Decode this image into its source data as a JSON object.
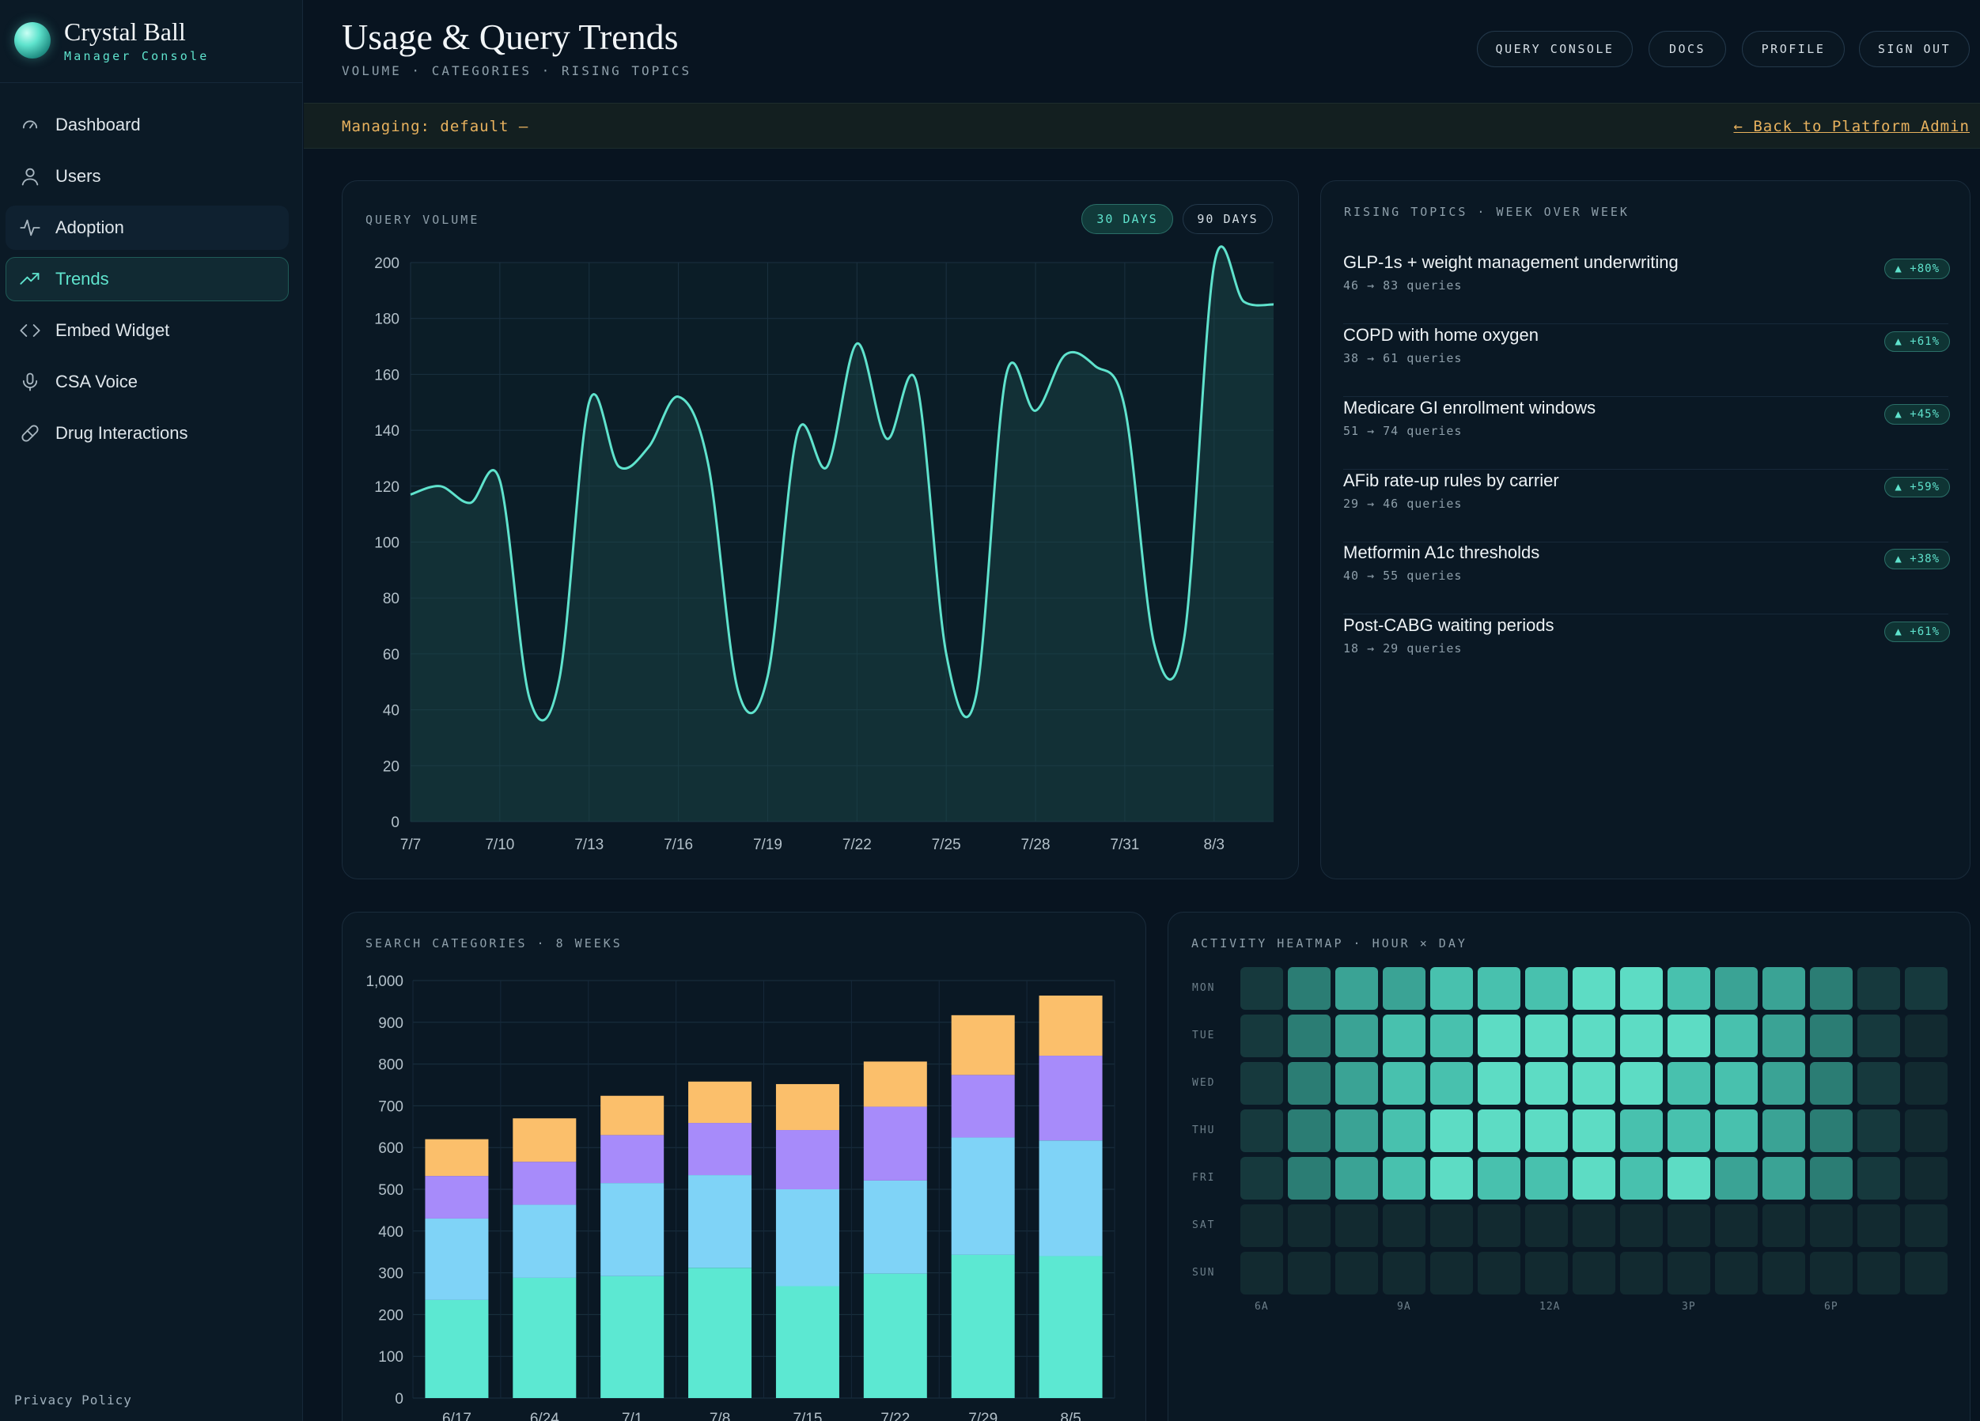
{
  "brand": {
    "title": "Crystal Ball",
    "subtitle": "Manager Console"
  },
  "nav": [
    {
      "label": "Dashboard",
      "icon": "gauge-icon"
    },
    {
      "label": "Users",
      "icon": "user-icon"
    },
    {
      "label": "Adoption",
      "icon": "activity-icon"
    },
    {
      "label": "Trends",
      "icon": "trending-up-icon",
      "active": true
    },
    {
      "label": "Embed Widget",
      "icon": "code-icon"
    },
    {
      "label": "CSA Voice",
      "icon": "microphone-icon"
    },
    {
      "label": "Drug Interactions",
      "icon": "pill-icon"
    }
  ],
  "footer": {
    "privacy": "Privacy Policy"
  },
  "header": {
    "title": "Usage & Query Trends",
    "subtitle": "VOLUME · CATEGORIES · RISING TOPICS",
    "buttons": [
      "QUERY CONSOLE",
      "DOCS",
      "PROFILE",
      "SIGN OUT"
    ]
  },
  "managing": {
    "text": "Managing: default —",
    "back": "← Back to Platform Admin"
  },
  "query_volume": {
    "label": "QUERY VOLUME",
    "toggles": [
      "30 DAYS",
      "90 DAYS"
    ],
    "active_toggle": "30 DAYS"
  },
  "rising_topics": {
    "label": "RISING TOPICS · WEEK OVER WEEK",
    "items": [
      {
        "title": "GLP-1s + weight management underwriting",
        "sub": "46 → 83 queries",
        "badge": "▲ +80%"
      },
      {
        "title": "COPD with home oxygen",
        "sub": "38 → 61 queries",
        "badge": "▲ +61%"
      },
      {
        "title": "Medicare GI enrollment windows",
        "sub": "51 → 74 queries",
        "badge": "▲ +45%"
      },
      {
        "title": "AFib rate-up rules by carrier",
        "sub": "29 → 46 queries",
        "badge": "▲ +59%"
      },
      {
        "title": "Metformin A1c thresholds",
        "sub": "40 → 55 queries",
        "badge": "▲ +38%"
      },
      {
        "title": "Post-CABG waiting periods",
        "sub": "18 → 29 queries",
        "badge": "▲ +61%"
      }
    ]
  },
  "search_categories": {
    "label": "SEARCH CATEGORIES · 8 WEEKS"
  },
  "heatmap": {
    "label": "ACTIVITY HEATMAP · HOUR × DAY",
    "days": [
      "MON",
      "TUE",
      "WED",
      "THU",
      "FRI",
      "SAT",
      "SUN"
    ],
    "hour_labels": [
      "6A",
      "9A",
      "12A",
      "3P",
      "6P"
    ],
    "levels": [
      [
        1,
        2,
        3,
        3,
        4,
        4,
        4,
        5,
        5,
        4,
        3,
        3,
        2,
        1,
        1
      ],
      [
        1,
        2,
        3,
        4,
        4,
        5,
        5,
        5,
        5,
        5,
        4,
        3,
        2,
        1,
        0
      ],
      [
        1,
        2,
        3,
        4,
        4,
        5,
        5,
        5,
        5,
        4,
        4,
        3,
        2,
        1,
        0
      ],
      [
        1,
        2,
        3,
        4,
        5,
        5,
        5,
        5,
        4,
        4,
        4,
        3,
        2,
        1,
        0
      ],
      [
        1,
        2,
        3,
        4,
        5,
        4,
        4,
        5,
        4,
        5,
        3,
        3,
        2,
        1,
        0
      ],
      [
        0,
        0,
        0,
        0,
        0,
        0,
        0,
        0,
        0,
        0,
        0,
        0,
        0,
        0,
        0
      ],
      [
        0,
        0,
        0,
        0,
        0,
        0,
        0,
        0,
        0,
        0,
        0,
        0,
        0,
        0,
        0
      ]
    ],
    "colors": [
      "#122a30",
      "#16393d",
      "#2b7d74",
      "#3aa395",
      "#48c1ae",
      "#5ddcc4"
    ]
  },
  "colors": {
    "accent": "#5fe3cd",
    "amber": "#e8b25e",
    "series": [
      "#5ce8d2",
      "#7fd3f7",
      "#a78bfa",
      "#fbbf6b"
    ]
  },
  "chart_data": [
    {
      "type": "area",
      "x": [
        "7/7",
        "7/8",
        "7/9",
        "7/10",
        "7/11",
        "7/12",
        "7/13",
        "7/14",
        "7/15",
        "7/16",
        "7/17",
        "7/18",
        "7/19",
        "7/20",
        "7/21",
        "7/22",
        "7/23",
        "7/24",
        "7/25",
        "7/26",
        "7/27",
        "7/28",
        "7/29",
        "7/30",
        "7/31",
        "8/1",
        "8/2",
        "8/3",
        "8/4",
        "8/5"
      ],
      "tick_labels": [
        "7/7",
        "7/10",
        "7/13",
        "7/16",
        "7/19",
        "7/22",
        "7/25",
        "7/28",
        "7/31",
        "8/3"
      ],
      "values": [
        117,
        120,
        114,
        122,
        44,
        51,
        150,
        127,
        134,
        152,
        128,
        47,
        52,
        139,
        127,
        171,
        137,
        157,
        60,
        45,
        159,
        147,
        167,
        163,
        148,
        63,
        66,
        199,
        186,
        185
      ],
      "ylim": [
        0,
        200
      ],
      "yticks": [
        0,
        20,
        40,
        60,
        80,
        100,
        120,
        140,
        160,
        180,
        200
      ],
      "grid": true
    },
    {
      "type": "bar",
      "stacked": true,
      "categories": [
        "6/17",
        "6/24",
        "7/1",
        "7/8",
        "7/15",
        "7/22",
        "7/29",
        "8/5"
      ],
      "series": [
        {
          "values": [
            235,
            288,
            292,
            312,
            268,
            298,
            343,
            340
          ]
        },
        {
          "values": [
            195,
            175,
            223,
            222,
            232,
            223,
            281,
            277
          ]
        },
        {
          "values": [
            102,
            103,
            115,
            125,
            142,
            177,
            150,
            203
          ]
        },
        {
          "values": [
            88,
            104,
            94,
            99,
            110,
            108,
            143,
            144
          ]
        }
      ],
      "ylim": [
        0,
        1000
      ],
      "yticks": [
        "0",
        "100",
        "200",
        "300",
        "400",
        "500",
        "600",
        "700",
        "800",
        "900",
        "1,000"
      ],
      "grid": true
    }
  ]
}
